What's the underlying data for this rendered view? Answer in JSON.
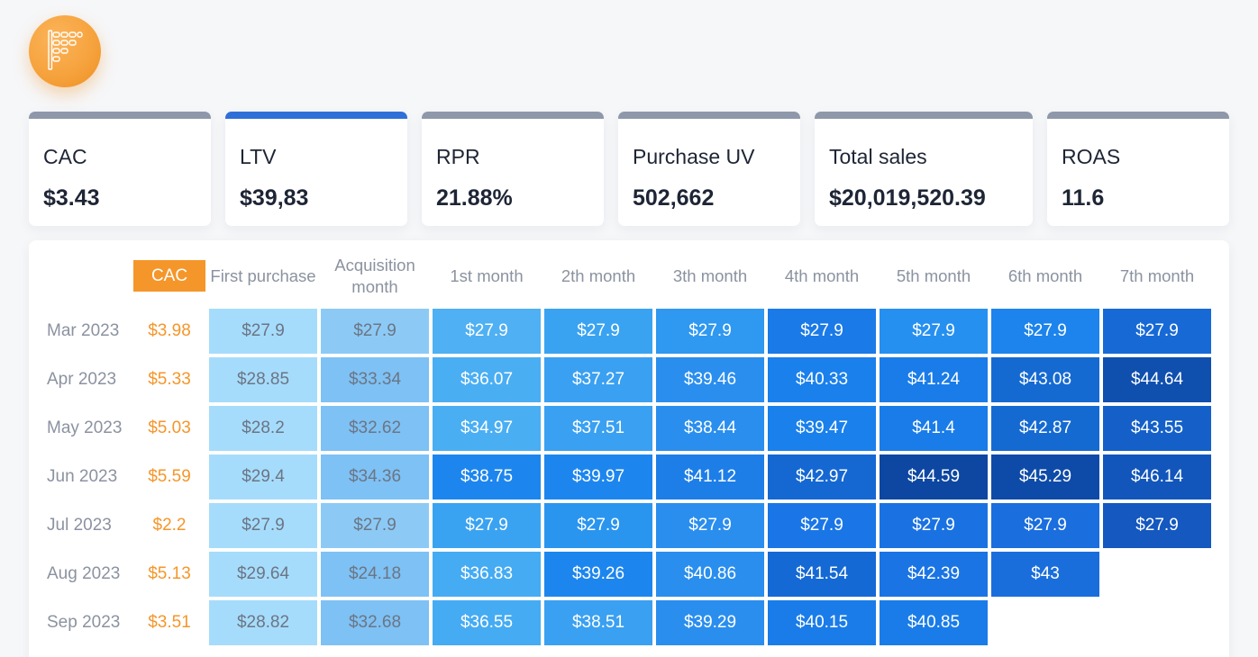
{
  "kpis": [
    {
      "label": "CAC",
      "value": "$3.43",
      "active": false
    },
    {
      "label": "LTV",
      "value": "$39,83",
      "active": true
    },
    {
      "label": "RPR",
      "value": "21.88%",
      "active": false
    },
    {
      "label": "Purchase UV",
      "value": "502,662",
      "active": false
    },
    {
      "label": "Total sales",
      "value": "$20,019,520.39",
      "active": false
    },
    {
      "label": "ROAS",
      "value": "11.6",
      "active": false
    }
  ],
  "table": {
    "cac_header": "CAC",
    "columns": [
      "First purchase",
      "Acquisition month",
      "1st month",
      "2th month",
      "3th month",
      "4th month",
      "5th month",
      "6th month",
      "7th month"
    ],
    "rows": [
      {
        "label": "Mar 2023",
        "cac": "$3.98",
        "cells": [
          "$27.9",
          "$27.9",
          "$27.9",
          "$27.9",
          "$27.9",
          "$27.9",
          "$27.9",
          "$27.9",
          "$27.9"
        ]
      },
      {
        "label": "Apr 2023",
        "cac": "$5.33",
        "cells": [
          "$28.85",
          "$33.34",
          "$36.07",
          "$37.27",
          "$39.46",
          "$40.33",
          "$41.24",
          "$43.08",
          "$44.64"
        ]
      },
      {
        "label": "May 2023",
        "cac": "$5.03",
        "cells": [
          "$28.2",
          "$32.62",
          "$34.97",
          "$37.51",
          "$38.44",
          "$39.47",
          "$41.4",
          "$42.87",
          "$43.55"
        ]
      },
      {
        "label": "Jun 2023",
        "cac": "$5.59",
        "cells": [
          "$29.4",
          "$34.36",
          "$38.75",
          "$39.97",
          "$41.12",
          "$42.97",
          "$44.59",
          "$45.29",
          "$46.14"
        ]
      },
      {
        "label": "Jul 2023",
        "cac": "$2.2",
        "cells": [
          "$27.9",
          "$27.9",
          "$27.9",
          "$27.9",
          "$27.9",
          "$27.9",
          "$27.9",
          "$27.9",
          "$27.9"
        ]
      },
      {
        "label": "Aug 2023",
        "cac": "$5.13",
        "cells": [
          "$29.64",
          "$24.18",
          "$36.83",
          "$39.26",
          "$40.86",
          "$41.54",
          "$42.39",
          "$43"
        ]
      },
      {
        "label": "Sep 2023",
        "cac": "$3.51",
        "cells": [
          "$28.82",
          "$32.68",
          "$36.55",
          "$38.51",
          "$39.29",
          "$40.15",
          "$40.85"
        ]
      }
    ],
    "cell_colors": [
      [
        "#a6dcfb",
        "#8ccaf5",
        "#4fb0f3",
        "#3aa3f1",
        "#2f98f0",
        "#1a7ae8",
        "#2690f0",
        "#1c84ec",
        "#176ad6"
      ],
      [
        "#a6dcfb",
        "#7ec1f4",
        "#4aaef3",
        "#3aa0f1",
        "#2a8eee",
        "#1a80ec",
        "#1a7ce8",
        "#156ad2",
        "#0f4fae"
      ],
      [
        "#a6dcfb",
        "#7ec1f4",
        "#4aaef3",
        "#3aa0f1",
        "#2a8eee",
        "#1a80ec",
        "#1a7ce8",
        "#156ad2",
        "#1460c8"
      ],
      [
        "#a6dcfb",
        "#7ec1f4",
        "#1d86ee",
        "#1d86ee",
        "#1d7ee8",
        "#1568d2",
        "#0d47a1",
        "#0e4ba8",
        "#1256bb"
      ],
      [
        "#a6dcfb",
        "#8ccaf5",
        "#3aa3f1",
        "#2a95ef",
        "#2a8eee",
        "#1a76e6",
        "#1a72e2",
        "#1a6ede",
        "#1458c0"
      ],
      [
        "#a6dcfb",
        "#7ec1f4",
        "#45abf3",
        "#1d86ee",
        "#2a8eee",
        "#1569d4",
        "#1a74e4",
        "#1a6edc"
      ],
      [
        "#a6dcfb",
        "#7ec1f4",
        "#45abf3",
        "#3aa0f1",
        "#2a8eee",
        "#1a7ce8",
        "#1a7ce8"
      ]
    ],
    "dark_text_cols": [
      0,
      1
    ]
  }
}
